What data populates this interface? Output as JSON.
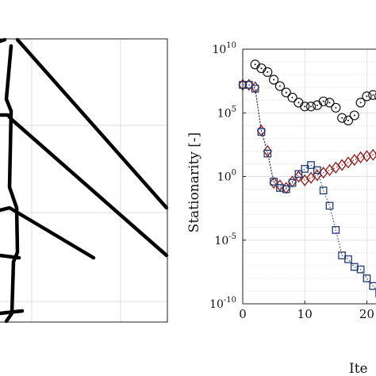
{
  "chart_data": [
    {
      "type": "line",
      "title": "",
      "xlabel": "",
      "ylabel": "",
      "grid": true,
      "note": "left panel is cropped; no axis tick labels visible"
    },
    {
      "type": "scatter",
      "title": "",
      "xlabel": "Ite",
      "ylabel": "Stationarity [-]",
      "yscale": "log",
      "grid": true,
      "xlim": [
        0,
        22.5
      ],
      "ylim": [
        1e-10,
        10000000000.0
      ],
      "x_ticks": [
        {
          "value": 0,
          "label": "0"
        },
        {
          "value": 10,
          "label": "10"
        },
        {
          "value": 20,
          "label": "20"
        }
      ],
      "y_ticks": [
        {
          "value": -10,
          "base": "10",
          "exp": "-10"
        },
        {
          "value": -5,
          "base": "10",
          "exp": "-5"
        },
        {
          "value": 0,
          "base": "10",
          "exp": "0"
        },
        {
          "value": 5,
          "base": "10",
          "exp": "5"
        },
        {
          "value": 10,
          "base": "10",
          "exp": "10"
        }
      ],
      "series": [
        {
          "marker": "circle",
          "color": "#111111",
          "connect": false,
          "x": [
            2,
            3,
            4,
            5,
            6,
            7,
            8,
            9,
            10,
            11,
            12,
            13,
            14,
            15,
            16,
            17,
            18,
            19,
            20,
            21,
            22
          ],
          "log10_y": [
            8.8,
            8.5,
            8.2,
            7.6,
            7.1,
            6.6,
            6.2,
            5.8,
            5.5,
            5.5,
            5.6,
            5.9,
            5.8,
            5.4,
            4.6,
            4.4,
            4.8,
            5.8,
            6.3,
            6.4,
            6.3
          ]
        },
        {
          "marker": "diamond",
          "color": "#8b1a1a",
          "connect": true,
          "x": [
            0,
            1,
            2,
            3,
            4,
            5,
            6,
            7,
            8,
            9,
            10,
            11,
            12,
            13,
            14,
            15,
            16,
            17,
            18,
            19,
            20,
            21,
            22
          ],
          "log10_y": [
            7.2,
            7.2,
            7.0,
            3.6,
            2.0,
            -0.5,
            -0.7,
            -0.9,
            -0.4,
            0.0,
            -0.3,
            -0.1,
            0.1,
            0.3,
            0.5,
            0.7,
            0.9,
            1.1,
            1.3,
            1.5,
            1.6,
            1.7,
            1.8
          ]
        },
        {
          "marker": "square",
          "color": "#1f3b73",
          "connect": true,
          "x": [
            0,
            1,
            2,
            3,
            4,
            5,
            6,
            7,
            8,
            9,
            10,
            11,
            12,
            13,
            14,
            15,
            16,
            17,
            18,
            19,
            20,
            21,
            22
          ],
          "log10_y": [
            7.2,
            7.2,
            6.9,
            3.5,
            1.8,
            -0.4,
            -0.9,
            -1.0,
            -0.5,
            0.2,
            0.6,
            0.9,
            0.5,
            -1.1,
            -2.3,
            -4.2,
            -6.2,
            -6.5,
            -7.1,
            -7.3,
            -8.0,
            -8.6,
            -9.2
          ]
        }
      ]
    }
  ]
}
